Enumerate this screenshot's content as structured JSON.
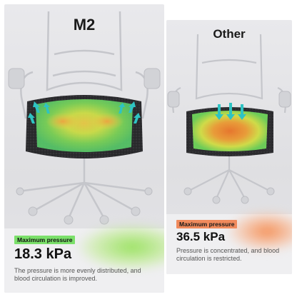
{
  "left_panel": {
    "title": "M2",
    "badge": "Maximum pressure",
    "value": "18.3 kPa",
    "description": "The pressure is more evenly distributed, and blood circulation is improved.",
    "badge_color": "#7be06a",
    "heat_colors": [
      "#6fd45a",
      "#c8e84a",
      "#f0c040"
    ]
  },
  "right_panel": {
    "title": "Other",
    "badge": "Maximum pressure",
    "value": "36.5 kPa",
    "description": "Pressure is concentrated, and blood circulation is restricted.",
    "badge_color": "#f08a5c",
    "heat_colors": [
      "#6fd45a",
      "#e8e040",
      "#f07830"
    ]
  },
  "icons": [
    "arrow-down-icon",
    "chair-image",
    "pressure-heatmap"
  ]
}
